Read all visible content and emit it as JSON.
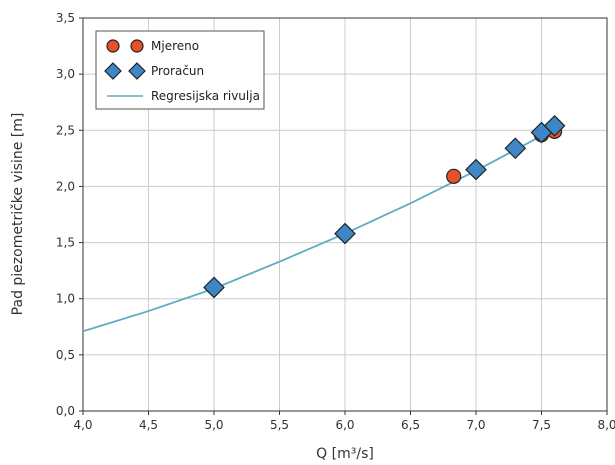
{
  "chart_data": {
    "type": "scatter",
    "xlabel": "Q [m³/s]",
    "ylabel": "Pad piezometričke visine [m]",
    "xlim": [
      4.0,
      8.0
    ],
    "ylim": [
      0.0,
      3.5
    ],
    "x_ticks": [
      "4,0",
      "4,5",
      "5,0",
      "5,5",
      "6,0",
      "6,5",
      "7,0",
      "7,5",
      "8,0"
    ],
    "y_ticks": [
      "0,0",
      "0,5",
      "1,0",
      "1,5",
      "2,0",
      "2,5",
      "3,0",
      "3,5"
    ],
    "grid": true,
    "legend_position": "top-left",
    "series": [
      {
        "name": "Mjereno",
        "marker": "circle",
        "color": "#e8502a",
        "x": [
          5.0,
          6.0,
          6.83,
          7.0,
          7.3,
          7.5,
          7.6
        ],
        "y": [
          1.1,
          1.58,
          2.09,
          2.15,
          2.34,
          2.46,
          2.49
        ]
      },
      {
        "name": "Proračun",
        "marker": "diamond",
        "color": "#3f86c6",
        "x": [
          5.0,
          6.0,
          7.0,
          7.3,
          7.5,
          7.6
        ],
        "y": [
          1.1,
          1.58,
          2.15,
          2.34,
          2.48,
          2.54
        ]
      },
      {
        "name": "Regresijska rivulja",
        "marker": "line",
        "color": "#5fadc0",
        "x": [
          4.0,
          4.5,
          5.0,
          5.5,
          6.0,
          6.5,
          7.0,
          7.5,
          7.6
        ],
        "y": [
          0.71,
          0.89,
          1.09,
          1.33,
          1.58,
          1.85,
          2.14,
          2.45,
          2.52
        ]
      }
    ]
  }
}
